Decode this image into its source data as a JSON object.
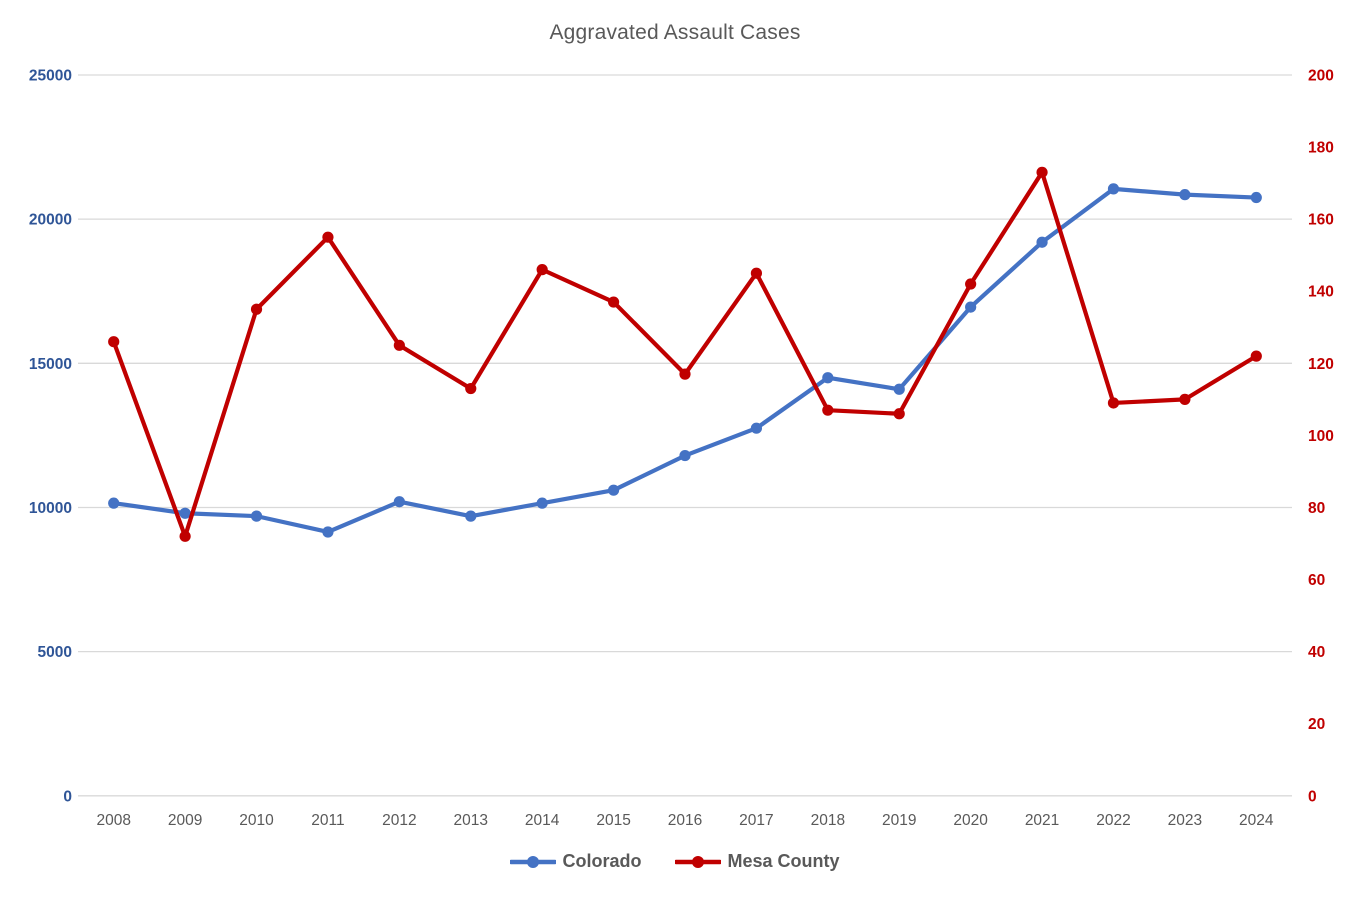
{
  "chart_data": {
    "type": "line",
    "title": "Aggravated Assault Cases",
    "categories": [
      "2008",
      "2009",
      "2010",
      "2011",
      "2012",
      "2013",
      "2014",
      "2015",
      "2016",
      "2017",
      "2018",
      "2019",
      "2020",
      "2021",
      "2022",
      "2023",
      "2024"
    ],
    "series": [
      {
        "name": "Colorado",
        "axis": "left",
        "color": "#4472C4",
        "values": [
          10150,
          9800,
          9700,
          9150,
          10200,
          9700,
          10150,
          10600,
          11800,
          12750,
          14500,
          14100,
          16950,
          19200,
          21050,
          20850,
          20750
        ]
      },
      {
        "name": "Mesa County",
        "axis": "right",
        "color": "#C00000",
        "values": [
          126,
          72,
          135,
          155,
          125,
          113,
          146,
          137,
          117,
          145,
          107,
          106,
          142,
          173,
          109,
          110,
          122
        ]
      }
    ],
    "axes": {
      "left": {
        "min": 0,
        "max": 25000,
        "step": 5000,
        "label_color": "#2F5597",
        "tick_labels": [
          "0",
          "5000",
          "10000",
          "15000",
          "20000",
          "25000"
        ]
      },
      "right": {
        "min": 0,
        "max": 200,
        "step": 20,
        "label_color": "#C00000",
        "tick_labels": [
          "0",
          "20",
          "40",
          "60",
          "80",
          "100",
          "120",
          "140",
          "160",
          "180",
          "200"
        ]
      }
    },
    "x_axis": {
      "label_color": "#595959"
    },
    "grid": {
      "show": true,
      "color": "#D9D9D9"
    },
    "legend": {
      "position": "bottom",
      "items": [
        {
          "label": "Colorado",
          "color": "#4472C4"
        },
        {
          "label": "Mesa County",
          "color": "#C00000"
        }
      ]
    }
  }
}
